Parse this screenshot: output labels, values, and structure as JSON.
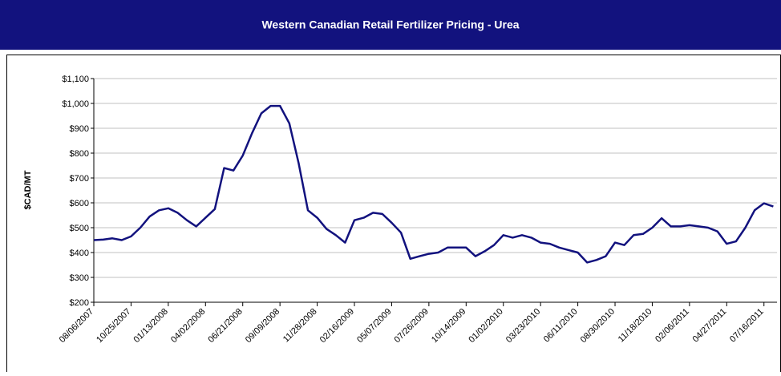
{
  "chart_data": {
    "type": "line",
    "title": "Western Canadian Retail Fertilizer Pricing - Urea",
    "y_label": "$CAD/MT",
    "categories": [
      "08/06/2007",
      null,
      null,
      null,
      "10/25/2007",
      null,
      null,
      null,
      "01/13/2008",
      null,
      null,
      null,
      "04/02/2008",
      null,
      null,
      null,
      "06/21/2008",
      null,
      null,
      null,
      "09/09/2008",
      null,
      null,
      null,
      "11/28/2008",
      null,
      null,
      null,
      "02/16/2009",
      null,
      null,
      null,
      "05/07/2009",
      null,
      null,
      null,
      "07/26/2009",
      null,
      null,
      null,
      "10/14/2009",
      null,
      null,
      null,
      "01/02/2010",
      null,
      null,
      null,
      "03/23/2010",
      null,
      null,
      null,
      "06/11/2010",
      null,
      null,
      null,
      "08/30/2010",
      null,
      null,
      null,
      "11/18/2010",
      null,
      null,
      null,
      "02/06/2011",
      null,
      null,
      null,
      "04/27/2011",
      null,
      null,
      null,
      "07/16/2011",
      null
    ],
    "series": [
      {
        "name": "Urea",
        "color": "#12127e",
        "values": [
          450,
          452,
          457,
          450,
          465,
          500,
          545,
          570,
          578,
          560,
          530,
          505,
          540,
          575,
          740,
          730,
          790,
          880,
          960,
          990,
          990,
          920,
          760,
          570,
          540,
          495,
          470,
          440,
          530,
          540,
          560,
          555,
          520,
          480,
          375,
          385,
          395,
          400,
          420,
          420,
          420,
          385,
          405,
          430,
          470,
          460,
          470,
          460,
          440,
          435,
          420,
          410,
          400,
          360,
          370,
          385,
          440,
          430,
          470,
          475,
          500,
          538,
          505,
          505,
          510,
          505,
          500,
          485,
          435,
          445,
          500,
          570,
          598,
          585
        ]
      }
    ],
    "ylim": [
      200,
      1100
    ],
    "yticks": [
      {
        "value": 200,
        "label": "$200"
      },
      {
        "value": 300,
        "label": "$300"
      },
      {
        "value": 400,
        "label": "$400"
      },
      {
        "value": 500,
        "label": "$500"
      },
      {
        "value": 600,
        "label": "$600"
      },
      {
        "value": 700,
        "label": "$700"
      },
      {
        "value": 800,
        "label": "$800"
      },
      {
        "value": 900,
        "label": "$900"
      },
      {
        "value": 1000,
        "label": "$1,000"
      },
      {
        "value": 1100,
        "label": "$1,100"
      }
    ],
    "grid": true
  }
}
